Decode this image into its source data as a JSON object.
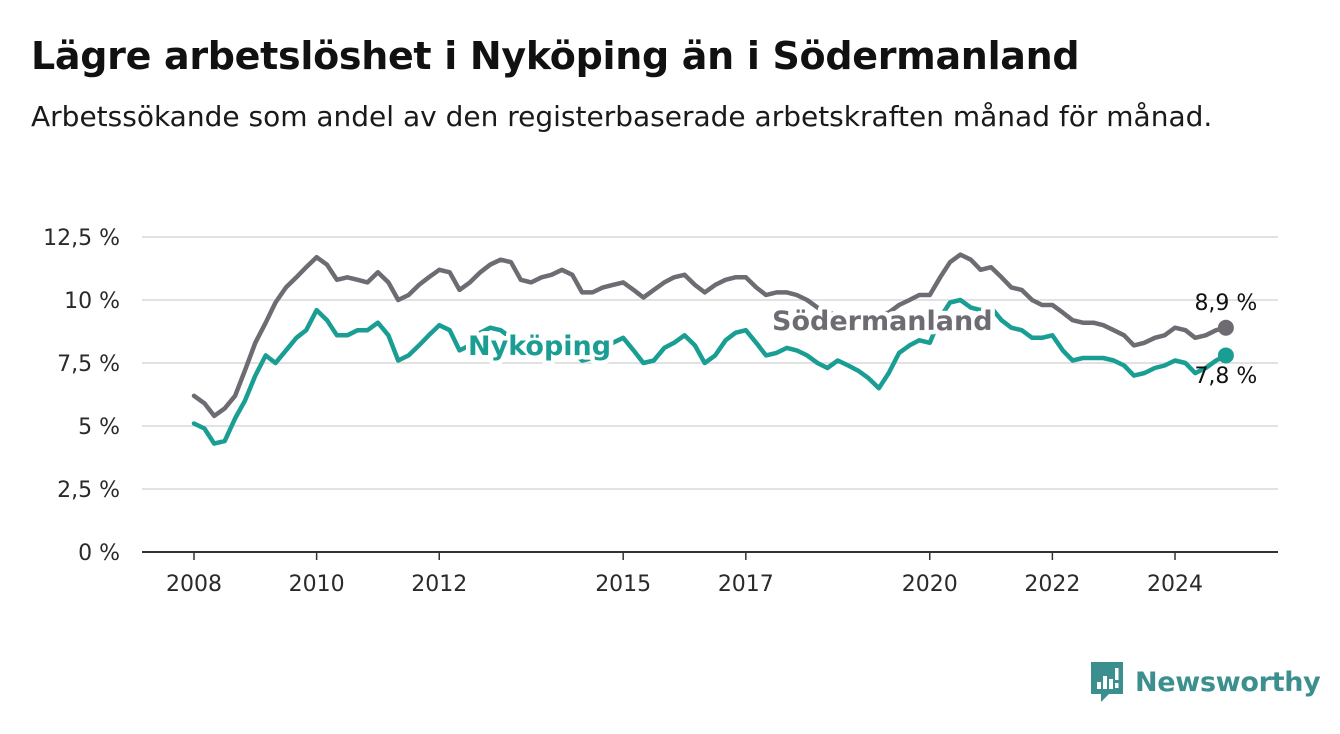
{
  "title": "Lägre arbetslöshet i Nyköping än i Södermanland",
  "subtitle": "Arbetssökande som andel av den registerbaserade arbetskraften månad för månad.",
  "brand": {
    "name": "Newsworthy",
    "icon": "newsworthy-logo-icon",
    "color": "#3c8f8f"
  },
  "chart_data": {
    "type": "line",
    "title": "Lägre arbetslöshet i Nyköping än i Södermanland",
    "subtitle": "Arbetssökande som andel av den registerbaserade arbetskraften månad för månad.",
    "xlabel": "",
    "ylabel": "",
    "ylim": [
      0,
      12.5
    ],
    "xlim": [
      2007.6,
      2025.4
    ],
    "grid": true,
    "legend": "inline labels",
    "y_ticks": [
      "0 %",
      "2,5 %",
      "5 %",
      "7,5 %",
      "10 %",
      "12,5 %"
    ],
    "y_tick_values": [
      0,
      2.5,
      5,
      7.5,
      10,
      12.5
    ],
    "x_ticks": [
      "2008",
      "2010",
      "2012",
      "2015",
      "2017",
      "2020",
      "2022",
      "2024"
    ],
    "x_tick_values": [
      2008,
      2010,
      2012,
      2015,
      2017,
      2020,
      2022,
      2024
    ],
    "series": [
      {
        "name": "Södermanland",
        "color": "#6e6c72",
        "end_label": "8,9 %",
        "points": [
          [
            2008.0,
            6.2
          ],
          [
            2008.17,
            5.9
          ],
          [
            2008.33,
            5.4
          ],
          [
            2008.5,
            5.7
          ],
          [
            2008.67,
            6.2
          ],
          [
            2008.83,
            7.2
          ],
          [
            2009.0,
            8.3
          ],
          [
            2009.17,
            9.1
          ],
          [
            2009.33,
            9.9
          ],
          [
            2009.5,
            10.5
          ],
          [
            2009.67,
            10.9
          ],
          [
            2009.83,
            11.3
          ],
          [
            2010.0,
            11.7
          ],
          [
            2010.17,
            11.4
          ],
          [
            2010.33,
            10.8
          ],
          [
            2010.5,
            10.9
          ],
          [
            2010.67,
            10.8
          ],
          [
            2010.83,
            10.7
          ],
          [
            2011.0,
            11.1
          ],
          [
            2011.17,
            10.7
          ],
          [
            2011.33,
            10.0
          ],
          [
            2011.5,
            10.2
          ],
          [
            2011.67,
            10.6
          ],
          [
            2011.83,
            10.9
          ],
          [
            2012.0,
            11.2
          ],
          [
            2012.17,
            11.1
          ],
          [
            2012.33,
            10.4
          ],
          [
            2012.5,
            10.7
          ],
          [
            2012.67,
            11.1
          ],
          [
            2012.83,
            11.4
          ],
          [
            2013.0,
            11.6
          ],
          [
            2013.17,
            11.5
          ],
          [
            2013.33,
            10.8
          ],
          [
            2013.5,
            10.7
          ],
          [
            2013.67,
            10.9
          ],
          [
            2013.83,
            11.0
          ],
          [
            2014.0,
            11.2
          ],
          [
            2014.17,
            11.0
          ],
          [
            2014.33,
            10.3
          ],
          [
            2014.5,
            10.3
          ],
          [
            2014.67,
            10.5
          ],
          [
            2014.83,
            10.6
          ],
          [
            2015.0,
            10.7
          ],
          [
            2015.17,
            10.4
          ],
          [
            2015.33,
            10.1
          ],
          [
            2015.5,
            10.4
          ],
          [
            2015.67,
            10.7
          ],
          [
            2015.83,
            10.9
          ],
          [
            2016.0,
            11.0
          ],
          [
            2016.17,
            10.6
          ],
          [
            2016.33,
            10.3
          ],
          [
            2016.5,
            10.6
          ],
          [
            2016.67,
            10.8
          ],
          [
            2016.83,
            10.9
          ],
          [
            2017.0,
            10.9
          ],
          [
            2017.17,
            10.5
          ],
          [
            2017.33,
            10.2
          ],
          [
            2017.5,
            10.3
          ],
          [
            2017.67,
            10.3
          ],
          [
            2017.83,
            10.2
          ],
          [
            2018.0,
            10.0
          ],
          [
            2018.17,
            9.7
          ],
          [
            2018.33,
            9.5
          ],
          [
            2018.5,
            9.4
          ],
          [
            2018.67,
            9.4
          ],
          [
            2018.83,
            9.3
          ],
          [
            2019.0,
            9.3
          ],
          [
            2019.17,
            9.4
          ],
          [
            2019.33,
            9.5
          ],
          [
            2019.5,
            9.8
          ],
          [
            2019.67,
            10.0
          ],
          [
            2019.83,
            10.2
          ],
          [
            2020.0,
            10.2
          ],
          [
            2020.17,
            10.9
          ],
          [
            2020.33,
            11.5
          ],
          [
            2020.5,
            11.8
          ],
          [
            2020.67,
            11.6
          ],
          [
            2020.83,
            11.2
          ],
          [
            2021.0,
            11.3
          ],
          [
            2021.17,
            10.9
          ],
          [
            2021.33,
            10.5
          ],
          [
            2021.5,
            10.4
          ],
          [
            2021.67,
            10.0
          ],
          [
            2021.83,
            9.8
          ],
          [
            2022.0,
            9.8
          ],
          [
            2022.17,
            9.5
          ],
          [
            2022.33,
            9.2
          ],
          [
            2022.5,
            9.1
          ],
          [
            2022.67,
            9.1
          ],
          [
            2022.83,
            9.0
          ],
          [
            2023.0,
            8.8
          ],
          [
            2023.17,
            8.6
          ],
          [
            2023.33,
            8.2
          ],
          [
            2023.5,
            8.3
          ],
          [
            2023.67,
            8.5
          ],
          [
            2023.83,
            8.6
          ],
          [
            2024.0,
            8.9
          ],
          [
            2024.17,
            8.8
          ],
          [
            2024.33,
            8.5
          ],
          [
            2024.5,
            8.6
          ],
          [
            2024.67,
            8.8
          ],
          [
            2024.83,
            8.9
          ]
        ]
      },
      {
        "name": "Nyköping",
        "color": "#1a9e93",
        "end_label": "7,8 %",
        "points": [
          [
            2008.0,
            5.1
          ],
          [
            2008.17,
            4.9
          ],
          [
            2008.33,
            4.3
          ],
          [
            2008.5,
            4.4
          ],
          [
            2008.67,
            5.3
          ],
          [
            2008.83,
            6.0
          ],
          [
            2009.0,
            7.0
          ],
          [
            2009.17,
            7.8
          ],
          [
            2009.33,
            7.5
          ],
          [
            2009.5,
            8.0
          ],
          [
            2009.67,
            8.5
          ],
          [
            2009.83,
            8.8
          ],
          [
            2010.0,
            9.6
          ],
          [
            2010.17,
            9.2
          ],
          [
            2010.33,
            8.6
          ],
          [
            2010.5,
            8.6
          ],
          [
            2010.67,
            8.8
          ],
          [
            2010.83,
            8.8
          ],
          [
            2011.0,
            9.1
          ],
          [
            2011.17,
            8.6
          ],
          [
            2011.33,
            7.6
          ],
          [
            2011.5,
            7.8
          ],
          [
            2011.67,
            8.2
          ],
          [
            2011.83,
            8.6
          ],
          [
            2012.0,
            9.0
          ],
          [
            2012.17,
            8.8
          ],
          [
            2012.33,
            8.0
          ],
          [
            2012.5,
            8.2
          ],
          [
            2012.67,
            8.7
          ],
          [
            2012.83,
            8.9
          ],
          [
            2013.0,
            8.8
          ],
          [
            2013.17,
            8.5
          ],
          [
            2013.33,
            7.8
          ],
          [
            2013.5,
            7.8
          ],
          [
            2013.67,
            8.0
          ],
          [
            2013.83,
            8.2
          ],
          [
            2014.0,
            8.3
          ],
          [
            2014.17,
            8.0
          ],
          [
            2014.33,
            7.6
          ],
          [
            2014.5,
            7.7
          ],
          [
            2014.67,
            8.0
          ],
          [
            2014.83,
            8.3
          ],
          [
            2015.0,
            8.5
          ],
          [
            2015.17,
            8.0
          ],
          [
            2015.33,
            7.5
          ],
          [
            2015.5,
            7.6
          ],
          [
            2015.67,
            8.1
          ],
          [
            2015.83,
            8.3
          ],
          [
            2016.0,
            8.6
          ],
          [
            2016.17,
            8.2
          ],
          [
            2016.33,
            7.5
          ],
          [
            2016.5,
            7.8
          ],
          [
            2016.67,
            8.4
          ],
          [
            2016.83,
            8.7
          ],
          [
            2017.0,
            8.8
          ],
          [
            2017.17,
            8.3
          ],
          [
            2017.33,
            7.8
          ],
          [
            2017.5,
            7.9
          ],
          [
            2017.67,
            8.1
          ],
          [
            2017.83,
            8.0
          ],
          [
            2018.0,
            7.8
          ],
          [
            2018.17,
            7.5
          ],
          [
            2018.33,
            7.3
          ],
          [
            2018.5,
            7.6
          ],
          [
            2018.67,
            7.4
          ],
          [
            2018.83,
            7.2
          ],
          [
            2019.0,
            6.9
          ],
          [
            2019.17,
            6.5
          ],
          [
            2019.33,
            7.1
          ],
          [
            2019.5,
            7.9
          ],
          [
            2019.67,
            8.2
          ],
          [
            2019.83,
            8.4
          ],
          [
            2020.0,
            8.3
          ],
          [
            2020.17,
            9.3
          ],
          [
            2020.33,
            9.9
          ],
          [
            2020.5,
            10.0
          ],
          [
            2020.67,
            9.7
          ],
          [
            2020.83,
            9.6
          ],
          [
            2021.0,
            9.7
          ],
          [
            2021.17,
            9.2
          ],
          [
            2021.33,
            8.9
          ],
          [
            2021.5,
            8.8
          ],
          [
            2021.67,
            8.5
          ],
          [
            2021.83,
            8.5
          ],
          [
            2022.0,
            8.6
          ],
          [
            2022.17,
            8.0
          ],
          [
            2022.33,
            7.6
          ],
          [
            2022.5,
            7.7
          ],
          [
            2022.67,
            7.7
          ],
          [
            2022.83,
            7.7
          ],
          [
            2023.0,
            7.6
          ],
          [
            2023.17,
            7.4
          ],
          [
            2023.33,
            7.0
          ],
          [
            2023.5,
            7.1
          ],
          [
            2023.67,
            7.3
          ],
          [
            2023.83,
            7.4
          ],
          [
            2024.0,
            7.6
          ],
          [
            2024.17,
            7.5
          ],
          [
            2024.33,
            7.1
          ],
          [
            2024.5,
            7.3
          ],
          [
            2024.67,
            7.6
          ],
          [
            2024.83,
            7.8
          ]
        ]
      }
    ]
  }
}
